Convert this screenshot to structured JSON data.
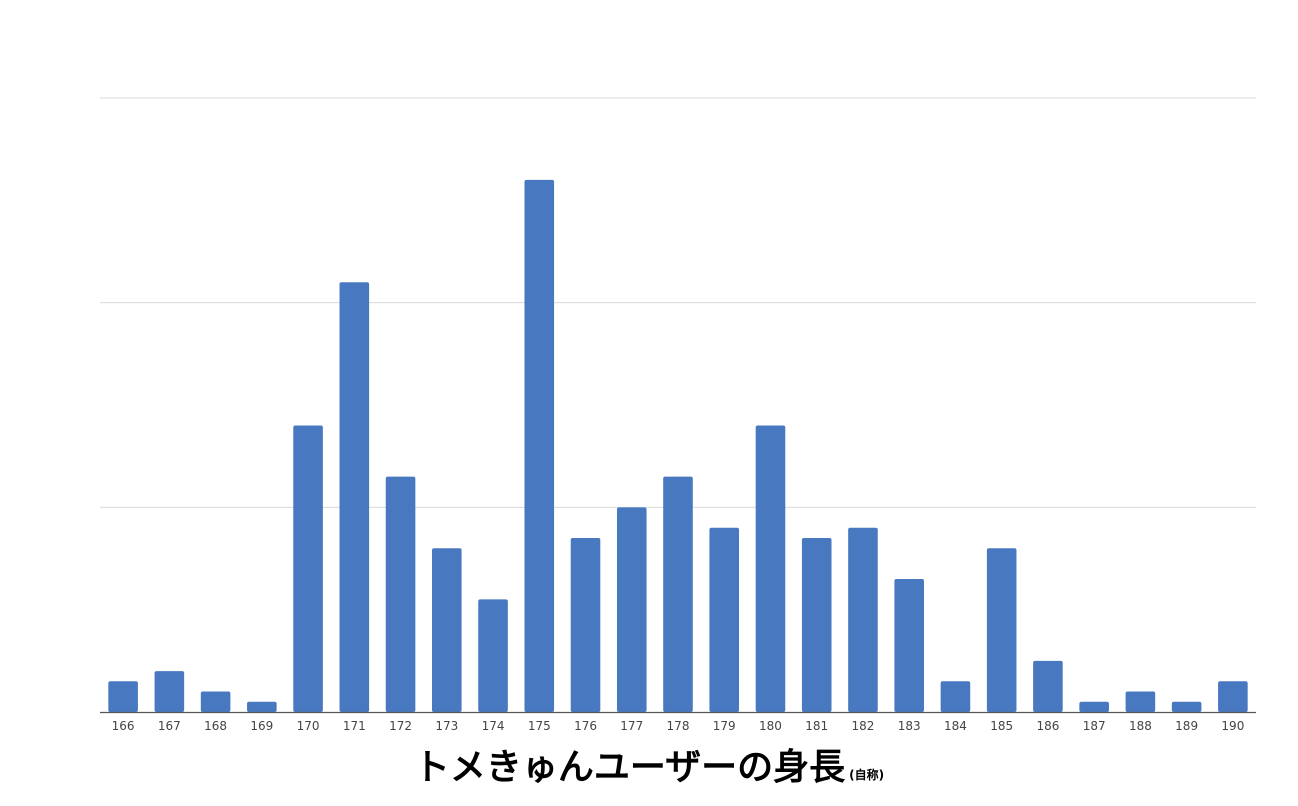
{
  "chart_data": {
    "type": "bar",
    "title": "トメきゅんユーザーの身長",
    "subtitle": "(自称)",
    "xlabel": "",
    "ylabel": "",
    "categories": [
      "166",
      "167",
      "168",
      "169",
      "170",
      "171",
      "172",
      "173",
      "174",
      "175",
      "176",
      "177",
      "178",
      "179",
      "180",
      "181",
      "182",
      "183",
      "184",
      "185",
      "186",
      "187",
      "188",
      "189",
      "190"
    ],
    "values": [
      3,
      4,
      2,
      1,
      28,
      42,
      23,
      16,
      11,
      52,
      17,
      20,
      23,
      18,
      28,
      17,
      18,
      13,
      3,
      16,
      5,
      1,
      2,
      1,
      3
    ],
    "ylim": [
      0,
      60
    ],
    "grid": true,
    "legend": "none",
    "y_tick_labels_shown": false,
    "colors": {
      "bar": "#4878bf",
      "grid": "#d9d9d9",
      "axis": "#555555"
    }
  }
}
